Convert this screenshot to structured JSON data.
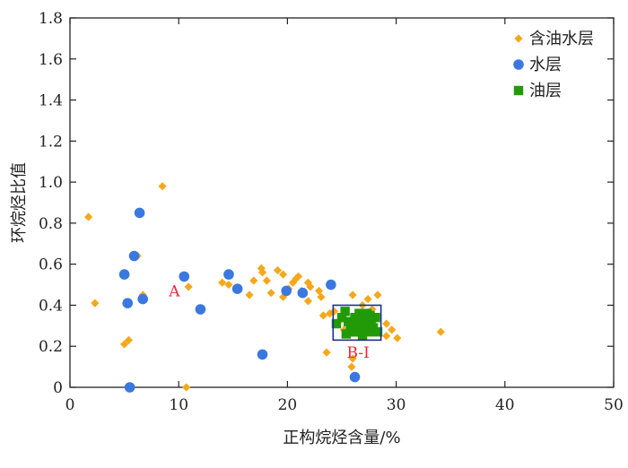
{
  "chart_data": {
    "type": "scatter",
    "xlabel": "正构烷烃含量/%",
    "ylabel": "环烷烃比值",
    "xlim": [
      0,
      50
    ],
    "ylim": [
      0,
      1.8
    ],
    "xticks": [
      0,
      10,
      20,
      30,
      40,
      50
    ],
    "xtick_labels": [
      "0",
      "10",
      "20",
      "30",
      "40",
      "50"
    ],
    "yticks": [
      0,
      0.2,
      0.4,
      0.6,
      0.8,
      1.0,
      1.2,
      1.4,
      1.6,
      1.8
    ],
    "ytick_labels": [
      "0",
      "0.2",
      "0.4",
      "0.6",
      "0.8",
      "1.0",
      "1.2",
      "1.4",
      "1.6",
      "1.8"
    ],
    "grid": false,
    "legend_position": "top-right",
    "series": [
      {
        "name": "含油水层",
        "marker": "diamond",
        "color": "#f5a81c",
        "points": [
          [
            1.7,
            0.83
          ],
          [
            2.3,
            0.41
          ],
          [
            8.5,
            0.98
          ],
          [
            5.0,
            0.21
          ],
          [
            5.4,
            0.23
          ],
          [
            6.7,
            0.45
          ],
          [
            6.2,
            0.64
          ],
          [
            10.9,
            0.49
          ],
          [
            10.7,
            0.0
          ],
          [
            14.0,
            0.51
          ],
          [
            14.6,
            0.5
          ],
          [
            16.5,
            0.45
          ],
          [
            16.9,
            0.52
          ],
          [
            17.6,
            0.58
          ],
          [
            17.7,
            0.56
          ],
          [
            18.1,
            0.52
          ],
          [
            18.5,
            0.46
          ],
          [
            19.1,
            0.57
          ],
          [
            19.6,
            0.55
          ],
          [
            19.6,
            0.44
          ],
          [
            20.1,
            0.48
          ],
          [
            20.5,
            0.51
          ],
          [
            20.8,
            0.53
          ],
          [
            21.0,
            0.54
          ],
          [
            21.3,
            0.47
          ],
          [
            21.9,
            0.51
          ],
          [
            22.1,
            0.49
          ],
          [
            21.9,
            0.42
          ],
          [
            22.9,
            0.47
          ],
          [
            23.1,
            0.44
          ],
          [
            23.3,
            0.35
          ],
          [
            23.9,
            0.36
          ],
          [
            23.6,
            0.17
          ],
          [
            24.3,
            0.37
          ],
          [
            24.9,
            0.33
          ],
          [
            25.2,
            0.28
          ],
          [
            26.0,
            0.45
          ],
          [
            26.0,
            0.14
          ],
          [
            25.9,
            0.1
          ],
          [
            26.9,
            0.4
          ],
          [
            27.4,
            0.43
          ],
          [
            27.8,
            0.38
          ],
          [
            28.3,
            0.45
          ],
          [
            29.1,
            0.31
          ],
          [
            29.6,
            0.28
          ],
          [
            30.1,
            0.24
          ],
          [
            29.1,
            0.25
          ],
          [
            34.1,
            0.27
          ]
        ]
      },
      {
        "name": "水层",
        "marker": "circle",
        "color": "#3a78e0",
        "points": [
          [
            6.4,
            0.85
          ],
          [
            5.9,
            0.64
          ],
          [
            5.0,
            0.55
          ],
          [
            10.5,
            0.54
          ],
          [
            14.6,
            0.55
          ],
          [
            15.4,
            0.48
          ],
          [
            5.3,
            0.41
          ],
          [
            6.7,
            0.43
          ],
          [
            12.0,
            0.38
          ],
          [
            19.9,
            0.47
          ],
          [
            21.4,
            0.46
          ],
          [
            24.0,
            0.5
          ],
          [
            17.7,
            0.16
          ],
          [
            26.2,
            0.05
          ],
          [
            5.5,
            0.0
          ]
        ]
      },
      {
        "name": "油层",
        "marker": "square",
        "color": "#229a08",
        "points": [
          [
            24.5,
            0.31
          ],
          [
            25.0,
            0.34
          ],
          [
            25.3,
            0.37
          ],
          [
            25.6,
            0.32
          ],
          [
            25.8,
            0.29
          ],
          [
            26.0,
            0.27
          ],
          [
            26.2,
            0.34
          ],
          [
            26.4,
            0.31
          ],
          [
            26.6,
            0.36
          ],
          [
            26.8,
            0.28
          ],
          [
            27.0,
            0.33
          ],
          [
            27.2,
            0.3
          ],
          [
            27.3,
            0.36
          ],
          [
            27.5,
            0.27
          ],
          [
            27.7,
            0.32
          ],
          [
            27.9,
            0.29
          ],
          [
            28.1,
            0.34
          ],
          [
            28.3,
            0.27
          ],
          [
            25.4,
            0.26
          ],
          [
            26.9,
            0.25
          ],
          [
            26.3,
            0.27
          ],
          [
            27.6,
            0.35
          ]
        ]
      }
    ],
    "annotations": [
      {
        "text": "A",
        "x": 9.6,
        "y": 0.47
      },
      {
        "text": "B-I",
        "x": 26.5,
        "y": 0.17
      }
    ],
    "boxes": [
      {
        "x0": 24.2,
        "x1": 28.6,
        "y0": 0.23,
        "y1": 0.4
      }
    ]
  }
}
